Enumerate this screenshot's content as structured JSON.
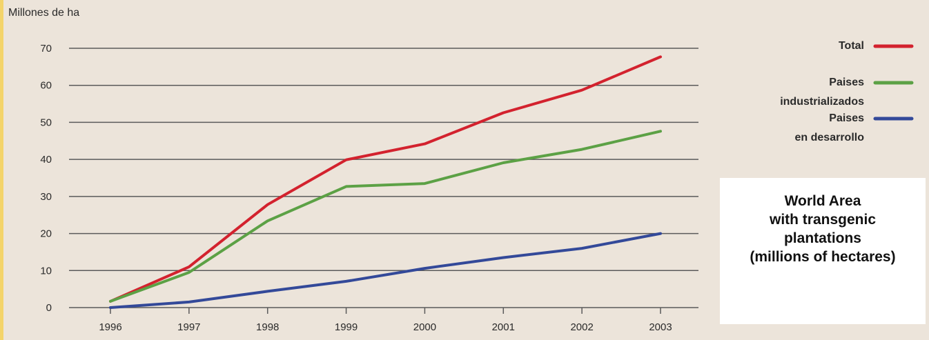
{
  "chart_data": {
    "type": "line",
    "unit_label": "Millones de ha",
    "categories": [
      "1996",
      "1997",
      "1998",
      "1999",
      "2000",
      "2001",
      "2002",
      "2003"
    ],
    "ylim": [
      0,
      70
    ],
    "yticks": [
      "0",
      "10",
      "20",
      "30",
      "40",
      "50",
      "60",
      "70"
    ],
    "grid": true,
    "legend_placement": "right",
    "series": [
      {
        "name": "Total",
        "legend_lines": [
          "Total"
        ],
        "color": "#d3222e",
        "values": [
          1.7,
          11,
          27.8,
          39.9,
          44.2,
          52.6,
          58.7,
          67.7
        ]
      },
      {
        "name": "Paises industrializados",
        "legend_lines": [
          "Paises",
          "industrializados"
        ],
        "color": "#5ca145",
        "values": [
          1.7,
          9.5,
          23.4,
          32.7,
          33.5,
          39.1,
          42.7,
          47.6
        ]
      },
      {
        "name": "Paises en desarrollo",
        "legend_lines": [
          "Paises",
          "en desarrollo"
        ],
        "color": "#334999",
        "values": [
          0,
          1.5,
          4.4,
          7.1,
          10.6,
          13.5,
          16,
          20
        ]
      }
    ]
  },
  "caption": {
    "lines": [
      "World Area",
      "with transgenic",
      "plantations",
      "(millions of hectares)"
    ]
  }
}
